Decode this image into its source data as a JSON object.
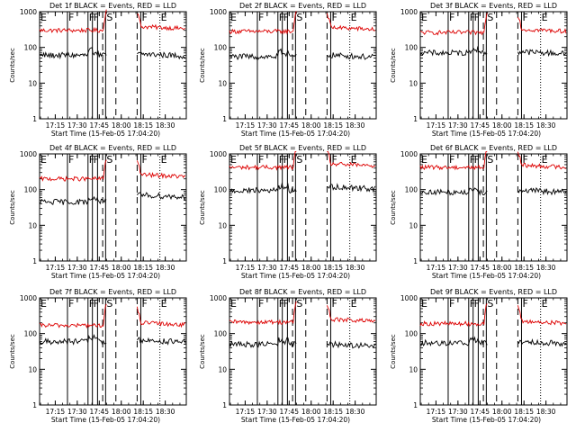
{
  "chart_data": {
    "type": "line",
    "layout": "3x3 grid",
    "yscale": "log",
    "ylabel": "Counts/sec",
    "ylim": [
      1,
      1000
    ],
    "y_ticks": [
      "1000",
      "100",
      "10",
      "1"
    ],
    "xlabel": "Start Time (15-Feb-05 17:04:20)",
    "x_range_minutes": [
      0,
      100
    ],
    "x_ticks": [
      "17:15",
      "17:30",
      "17:45",
      "18:00",
      "18:15",
      "18:30"
    ],
    "x_tick_positions_minutes": [
      10.67,
      25.67,
      40.67,
      55.67,
      70.67,
      85.67
    ],
    "series": [
      {
        "name": "Events",
        "color": "#000000"
      },
      {
        "name": "LLD",
        "color": "#dd0000"
      }
    ],
    "markers": [
      {
        "label": "E",
        "minute": 0,
        "style": "solid"
      },
      {
        "label": "F",
        "minute": 19,
        "style": "solid"
      },
      {
        "label": "F",
        "minute": 33,
        "style": "solid"
      },
      {
        "label": "F",
        "minute": 36,
        "style": "solid"
      },
      {
        "label": "",
        "minute": 39.5,
        "style": "solid"
      },
      {
        "label": "",
        "minute": 43,
        "style": "dashed"
      },
      {
        "label": "S",
        "minute": 45,
        "style": "solid"
      },
      {
        "label": "",
        "minute": 52,
        "style": "dashed"
      },
      {
        "label": "",
        "minute": 66.5,
        "style": "dashed"
      },
      {
        "label": "F",
        "minute": 69,
        "style": "solid"
      },
      {
        "label": "E",
        "minute": 82,
        "style": "dotted"
      }
    ],
    "saa_gap_minutes": [
      46,
      66
    ],
    "panels": [
      {
        "title": "Det 1f BLACK = Events, RED = LLD",
        "events_level": 60,
        "lld_level": 300,
        "events_after": 65,
        "lld_after": 380
      },
      {
        "title": "Det 2f BLACK = Events, RED = LLD",
        "events_level": 55,
        "lld_level": 280,
        "events_after": 60,
        "lld_after": 360
      },
      {
        "title": "Det 3f BLACK = Events, RED = LLD",
        "events_level": 70,
        "lld_level": 260,
        "events_after": 75,
        "lld_after": 320
      },
      {
        "title": "Det 4f BLACK = Events, RED = LLD",
        "events_level": 45,
        "lld_level": 200,
        "events_after": 70,
        "lld_after": 260
      },
      {
        "title": "Det 5f BLACK = Events, RED = LLD",
        "events_level": 95,
        "lld_level": 420,
        "events_after": 120,
        "lld_after": 520
      },
      {
        "title": "Det 6f BLACK = Events, RED = LLD",
        "events_level": 85,
        "lld_level": 420,
        "events_after": 95,
        "lld_after": 480
      },
      {
        "title": "Det 7f BLACK = Events, RED = LLD",
        "events_level": 60,
        "lld_level": 170,
        "events_after": 65,
        "lld_after": 200
      },
      {
        "title": "Det 8f BLACK = Events, RED = LLD",
        "events_level": 50,
        "lld_level": 210,
        "events_after": 50,
        "lld_after": 250
      },
      {
        "title": "Det 9f BLACK = Events, RED = LLD",
        "events_level": 55,
        "lld_level": 190,
        "events_after": 60,
        "lld_after": 220
      }
    ]
  }
}
